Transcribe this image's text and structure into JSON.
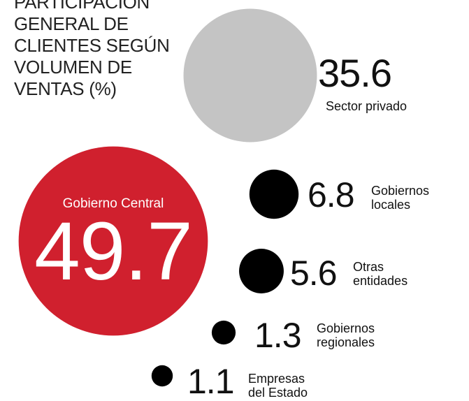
{
  "chart_data": {
    "type": "bubble",
    "title": "PARTICIPACIÓN GENERAL DE CLIENTES SEGÚN VOLUMEN DE VENTAS (%)",
    "categories": [
      "Sector privado",
      "Gobierno Central",
      "Gobiernos locales",
      "Otras entidades",
      "Gobiernos regionales",
      "Empresas del Estado"
    ],
    "values": [
      35.6,
      49.7,
      6.8,
      5.6,
      1.3,
      1.1
    ],
    "colors": [
      "#c4c4c4",
      "#d0202e",
      "#000000",
      "#000000",
      "#000000",
      "#000000"
    ]
  }
}
